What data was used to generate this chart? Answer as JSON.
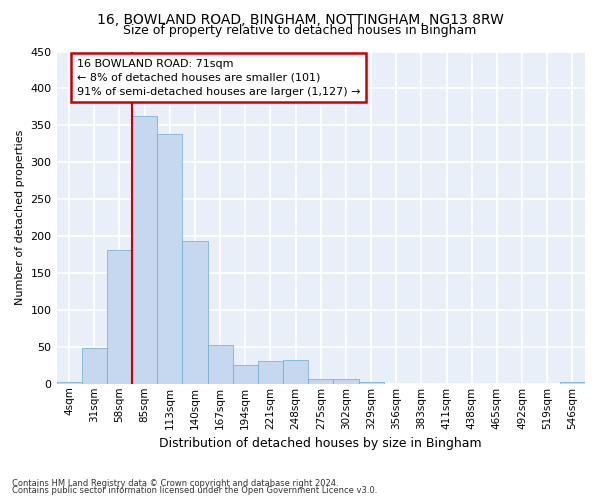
{
  "title_line1": "16, BOWLAND ROAD, BINGHAM, NOTTINGHAM, NG13 8RW",
  "title_line2": "Size of property relative to detached houses in Bingham",
  "xlabel": "Distribution of detached houses by size in Bingham",
  "ylabel": "Number of detached properties",
  "bar_color": "#c5d8f0",
  "bar_edge_color": "#6aaad4",
  "background_color": "#e8eff9",
  "grid_color": "#ffffff",
  "categories": [
    "4sqm",
    "31sqm",
    "58sqm",
    "85sqm",
    "113sqm",
    "140sqm",
    "167sqm",
    "194sqm",
    "221sqm",
    "248sqm",
    "275sqm",
    "302sqm",
    "329sqm",
    "356sqm",
    "383sqm",
    "411sqm",
    "438sqm",
    "465sqm",
    "492sqm",
    "519sqm",
    "546sqm"
  ],
  "values": [
    3,
    48,
    181,
    362,
    338,
    193,
    52,
    26,
    31,
    32,
    6,
    6,
    3,
    0,
    0,
    0,
    0,
    0,
    0,
    0,
    3
  ],
  "red_line_x": 2.5,
  "ylim": [
    0,
    450
  ],
  "yticks": [
    0,
    50,
    100,
    150,
    200,
    250,
    300,
    350,
    400,
    450
  ],
  "annotation_text": "16 BOWLAND ROAD: 71sqm\n← 8% of detached houses are smaller (101)\n91% of semi-detached houses are larger (1,127) →",
  "annotation_box_color": "#ffffff",
  "annotation_border_color": "#cc0000",
  "footnote1": "Contains HM Land Registry data © Crown copyright and database right 2024.",
  "footnote2": "Contains public sector information licensed under the Open Government Licence v3.0."
}
